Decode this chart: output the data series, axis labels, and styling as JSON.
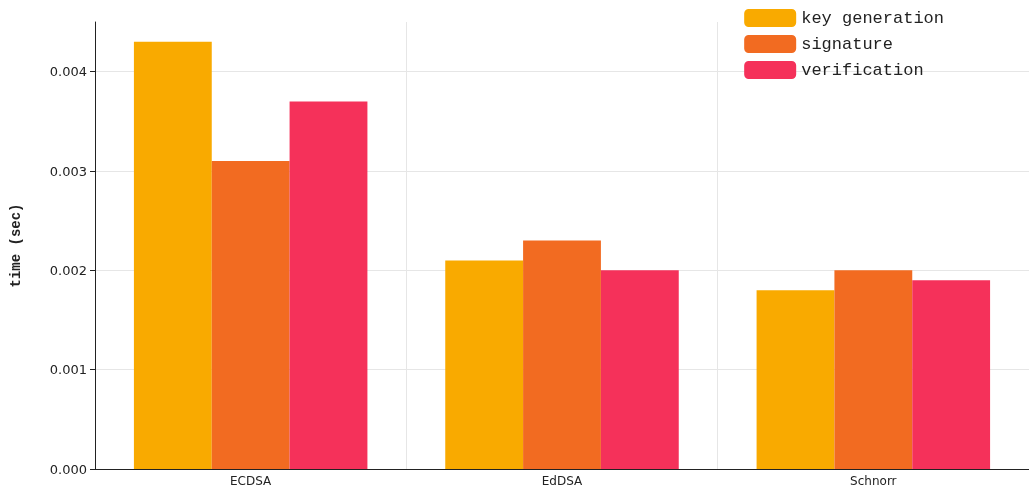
{
  "chart_data": {
    "type": "bar",
    "ylabel": "time (sec)",
    "categories": [
      "ECDSA",
      "EdDSA",
      "Schnorr"
    ],
    "series": [
      {
        "name": "key generation",
        "color": "#f9aa00",
        "values": [
          0.0043,
          0.0021,
          0.0018
        ]
      },
      {
        "name": "signature",
        "color": "#f26b21",
        "values": [
          0.0031,
          0.0023,
          0.002
        ]
      },
      {
        "name": "verification",
        "color": "#f5315a",
        "values": [
          0.0037,
          0.002,
          0.0019
        ]
      }
    ],
    "ylim": [
      0,
      0.0045
    ],
    "yticks": [
      {
        "value": 0,
        "label": "0.000"
      },
      {
        "value": 0.001,
        "label": "0.001"
      },
      {
        "value": 0.002,
        "label": "0.002"
      },
      {
        "value": 0.003,
        "label": "0.003"
      },
      {
        "value": 0.004,
        "label": "0.004"
      }
    ],
    "grid": true,
    "legend": "top right"
  }
}
